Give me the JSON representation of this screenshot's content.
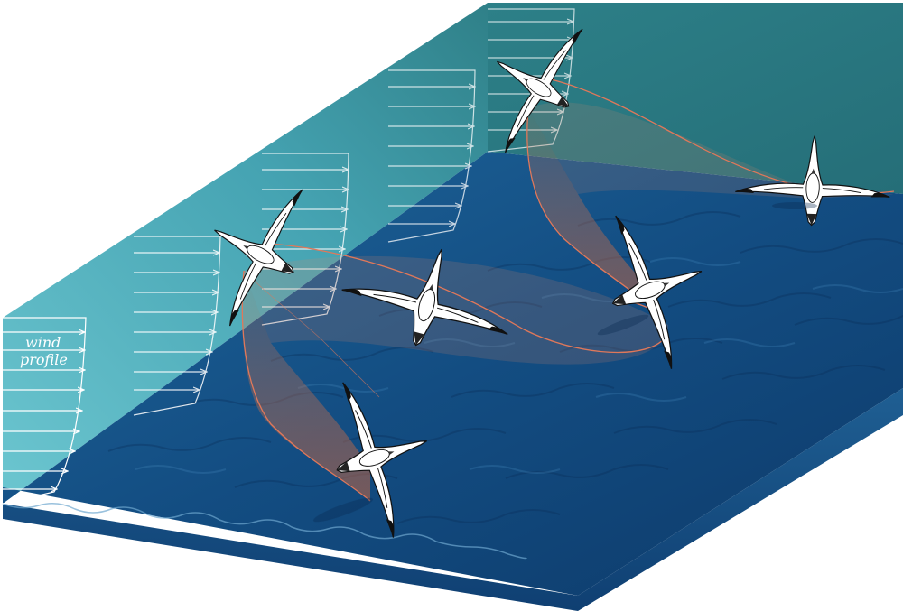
{
  "labels": {
    "wind_line1": "wind",
    "wind_line2": "profile"
  },
  "colors": {
    "wall_light": "#5fb8c4",
    "wall_mid": "#3f9aa8",
    "wall_far": "#2d7a7f",
    "ocean_deep": "#0f3c6e",
    "ocean_mid": "#1a5a8f",
    "ocean_light": "#2f7ab0",
    "trajectory": "#e0785a",
    "trajectory_fill": "#c8663f",
    "arrow": "#ffffff",
    "bird_body": "#ffffff",
    "bird_wing_tip": "#111111"
  },
  "icons": {
    "bird": "albatross-icon",
    "arrow": "wind-arrow-icon"
  }
}
